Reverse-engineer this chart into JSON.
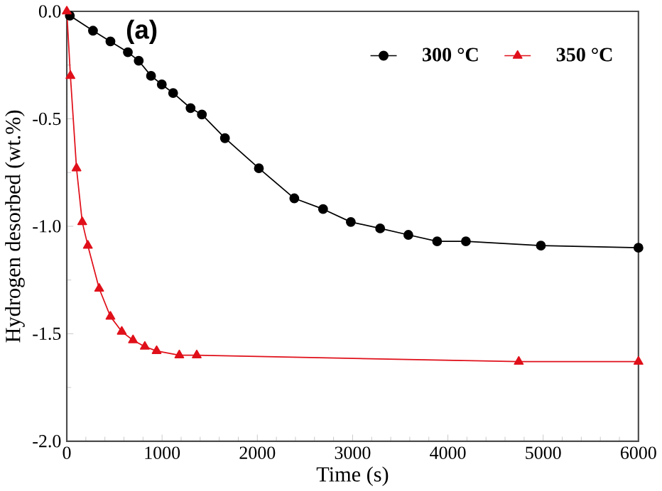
{
  "chart_data": {
    "type": "line",
    "xlabel": "Time (s)",
    "ylabel": "Hydrogen desorbed (wt.%)",
    "annotations": [
      "(a)"
    ],
    "xlim": [
      0,
      6000
    ],
    "xticks": [
      0,
      1000,
      2000,
      3000,
      4000,
      5000,
      6000
    ],
    "ylim": [
      -2.0,
      0.0
    ],
    "yticks": [
      {
        "value": -2.0,
        "label": "-2.0"
      },
      {
        "value": -1.5,
        "label": "-1.5"
      },
      {
        "value": -1.0,
        "label": "-1.0"
      },
      {
        "value": -0.5,
        "label": "-0.5"
      },
      {
        "value": 0.0,
        "label": "0.0"
      }
    ],
    "legend": "top right",
    "grid": false,
    "series": [
      {
        "name": "300  °C",
        "color": "#000000",
        "marker": "circle",
        "x": [
          32,
          275,
          458,
          641,
          755,
          884,
          997,
          1116,
          1299,
          1418,
          1660,
          2016,
          2388,
          2690,
          2981,
          3289,
          3585,
          3887,
          4189,
          4976,
          6000
        ],
        "values": [
          -0.02,
          -0.09,
          -0.14,
          -0.19,
          -0.23,
          -0.3,
          -0.34,
          -0.38,
          -0.45,
          -0.48,
          -0.59,
          -0.73,
          -0.87,
          -0.92,
          -0.98,
          -1.01,
          -1.04,
          -1.07,
          -1.07,
          -1.09,
          -1.1
        ]
      },
      {
        "name": "350 °C",
        "color": "#e0101a",
        "marker": "triangle",
        "x": [
          0,
          38,
          102,
          162,
          221,
          340,
          458,
          577,
          695,
          819,
          943,
          1181,
          1364,
          4744,
          6000
        ],
        "values": [
          0.0,
          -0.3,
          -0.73,
          -0.98,
          -1.09,
          -1.29,
          -1.42,
          -1.49,
          -1.53,
          -1.56,
          -1.58,
          -1.6,
          -1.6,
          -1.63,
          -1.63
        ]
      }
    ]
  }
}
